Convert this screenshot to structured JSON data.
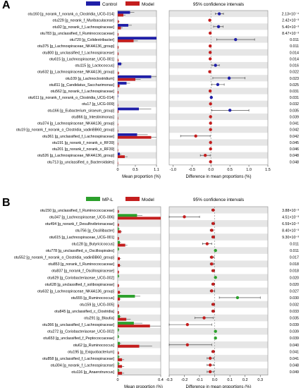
{
  "chart_data": [
    {
      "panel_label": "A",
      "type": "bar",
      "legend": [
        {
          "name": "Control",
          "color": "#1f1fa8"
        },
        {
          "name": "Model",
          "color": "#c41e1e"
        }
      ],
      "ci_header": "95% confidence intervals",
      "xlabel_left": "Mean proportion (%)",
      "xlabel_right": "Difference in mean proportions (%)",
      "left_ticks": [
        "0",
        "0.5",
        "1.1"
      ],
      "left_xlim": [
        0,
        1.1
      ],
      "right_ticks": [
        "-1.0",
        "-0.5",
        "0.0",
        "0.5",
        "1.0",
        "1.5"
      ],
      "right_xlim": [
        -1.1,
        1.5
      ],
      "series_names": [
        "Control",
        "Model"
      ],
      "rows": [
        {
          "label": "otu160 [g_norank_f_norank_o_Clostridia_UCG-014]",
          "a": 0.35,
          "ae": 0.12,
          "b": 0.16,
          "be": 0.06,
          "d": 0.22,
          "lo": 0.12,
          "hi": 0.33,
          "g": "a",
          "p": "2.13×10⁻⁴"
        },
        {
          "label": "otu229 [g_norank_f_Muribaculaceae]",
          "a": 0.0,
          "ae": 0.0,
          "b": 0.03,
          "be": 0.02,
          "d": -0.03,
          "lo": -0.05,
          "hi": -0.01,
          "g": "b",
          "p": "2.42×10⁻³"
        },
        {
          "label": "otu92 [g_norank_f_Lachnospiraceae]",
          "a": 0.3,
          "ae": 0.1,
          "b": 0.09,
          "be": 0.05,
          "d": 0.2,
          "lo": 0.07,
          "hi": 0.32,
          "g": "a",
          "p": "5.40×10⁻³"
        },
        {
          "label": "otu783 [g_unclassified_f_Ruminococcaceae]",
          "a": 0.0,
          "ae": 0.0,
          "b": 0.02,
          "be": 0.01,
          "d": -0.02,
          "lo": -0.04,
          "hi": -0.01,
          "g": "b",
          "p": "8.47×10⁻³"
        },
        {
          "label": "otu720 [g_Colidextribacter]",
          "a": 1.1,
          "ae": 0.2,
          "b": 0.45,
          "be": 0.12,
          "d": 0.65,
          "lo": 0.15,
          "hi": 1.15,
          "g": "a",
          "p": "0.011"
        },
        {
          "label": "otu375 [g_Lachnospiraceae_NK4A136_group]",
          "a": 0.0,
          "ae": 0.0,
          "b": 0.02,
          "be": 0.01,
          "d": -0.02,
          "lo": -0.04,
          "hi": 0.0,
          "g": "b",
          "p": "0.011"
        },
        {
          "label": "otu800 [g_unclassified_f_Lachnospiraceae]",
          "a": 0.0,
          "ae": 0.0,
          "b": 0.02,
          "be": 0.01,
          "d": -0.02,
          "lo": -0.04,
          "hi": 0.0,
          "g": "b",
          "p": "0.014"
        },
        {
          "label": "otu615 [g_Lachnospiraceae_UCG-001]",
          "a": 0.0,
          "ae": 0.0,
          "b": 0.02,
          "be": 0.01,
          "d": -0.02,
          "lo": -0.04,
          "hi": 0.0,
          "g": "b",
          "p": "0.014"
        },
        {
          "label": "otu115 [g_Lactococcus]",
          "a": 0.1,
          "ae": 0.03,
          "b": 0.01,
          "be": 0.01,
          "d": 0.12,
          "lo": 0.03,
          "hi": 0.22,
          "g": "a",
          "p": "0.016"
        },
        {
          "label": "otu632 [g_Lachnospiraceae_NK4A136_group]",
          "a": 0.0,
          "ae": 0.0,
          "b": 0.03,
          "be": 0.02,
          "d": -0.03,
          "lo": -0.06,
          "hi": -0.01,
          "g": "b",
          "p": "0.022"
        },
        {
          "label": "otu109 [g_Lachnoclostridium]",
          "a": 0.95,
          "ae": 0.2,
          "b": 0.5,
          "be": 0.15,
          "d": 0.48,
          "lo": 0.05,
          "hi": 0.9,
          "g": "a",
          "p": "0.023"
        },
        {
          "label": "otu811 [g_Candidatus_Saccharimonas]",
          "a": 0.25,
          "ae": 0.1,
          "b": 0.05,
          "be": 0.02,
          "d": 0.18,
          "lo": 0.02,
          "hi": 0.35,
          "g": "a",
          "p": "0.025"
        },
        {
          "label": "otu562 [g_norank_f_Lachnospiraceae]",
          "a": 0.0,
          "ae": 0.0,
          "b": 0.02,
          "be": 0.01,
          "d": -0.02,
          "lo": -0.05,
          "hi": 0.0,
          "g": "b",
          "p": "0.031"
        },
        {
          "label": "otu611 [g_norank_f_norank_o_Clostridia_UCG-014]",
          "a": 0.01,
          "ae": 0.01,
          "b": 0.0,
          "be": 0.0,
          "d": 0.01,
          "lo": 0.0,
          "hi": 0.02,
          "g": "a",
          "p": "0.031"
        },
        {
          "label": "otu17 [g_UCG-009]",
          "a": 0.0,
          "ae": 0.0,
          "b": 0.01,
          "be": 0.01,
          "d": -0.01,
          "lo": -0.03,
          "hi": 0.0,
          "g": "b",
          "p": "0.032"
        },
        {
          "label": "otu166 [g_Eubacterium_siraeum_group]",
          "a": 0.6,
          "ae": 0.35,
          "b": 0.02,
          "be": 0.01,
          "d": 0.5,
          "lo": 0.02,
          "hi": 1.0,
          "g": "a",
          "p": "0.035"
        },
        {
          "label": "otu866 [g_Intestinimonas]",
          "a": 0.0,
          "ae": 0.0,
          "b": 0.01,
          "be": 0.01,
          "d": -0.01,
          "lo": -0.02,
          "hi": 0.0,
          "g": "b",
          "p": "0.039"
        },
        {
          "label": "otu374 [g_Lachnospiraceae_NK4A136_group]",
          "a": 0.0,
          "ae": 0.0,
          "b": 0.01,
          "be": 0.01,
          "d": -0.01,
          "lo": -0.02,
          "hi": 0.0,
          "g": "b",
          "p": "0.041"
        },
        {
          "label": "otu19 [g_norank_f_norank_o_Clostridia_vadinBB60_group]",
          "a": 0.0,
          "ae": 0.0,
          "b": 0.01,
          "be": 0.01,
          "d": -0.01,
          "lo": -0.02,
          "hi": 0.0,
          "g": "b",
          "p": "0.042"
        },
        {
          "label": "otu361 [g_unclassified_f_Lachnospiraceae]",
          "a": 0.55,
          "ae": 0.3,
          "b": 0.95,
          "be": 0.25,
          "d": -0.4,
          "lo": -0.8,
          "hi": -0.02,
          "g": "b",
          "p": "0.042"
        },
        {
          "label": "otu191 [g_norank_f_norank_o_RF39]",
          "a": 0.0,
          "ae": 0.0,
          "b": 0.01,
          "be": 0.01,
          "d": -0.01,
          "lo": -0.02,
          "hi": 0.0,
          "g": "b",
          "p": "0.045"
        },
        {
          "label": "otu201 [g_norank_f_norank_o_RF39]",
          "a": 0.0,
          "ae": 0.0,
          "b": 0.01,
          "be": 0.01,
          "d": -0.01,
          "lo": -0.02,
          "hi": 0.0,
          "g": "b",
          "p": "0.046"
        },
        {
          "label": "otu526 [g_Lachnospiraceae_NK4A136_group]",
          "a": 0.06,
          "ae": 0.04,
          "b": 0.2,
          "be": 0.08,
          "d": -0.15,
          "lo": -0.28,
          "hi": -0.02,
          "g": "b",
          "p": "0.048"
        },
        {
          "label": "otu713 [g_unclassified_o_Bacteroidales]",
          "a": 0.0,
          "ae": 0.0,
          "b": 0.01,
          "be": 0.01,
          "d": -0.01,
          "lo": -0.02,
          "hi": 0.0,
          "g": "b",
          "p": "0.048"
        }
      ]
    },
    {
      "panel_label": "B",
      "type": "bar",
      "legend": [
        {
          "name": "MP-L",
          "color": "#2ca02c"
        },
        {
          "name": "Model",
          "color": "#c41e1e"
        }
      ],
      "ci_header": "95% confidence intervals",
      "xlabel_left": "Mean proportion (%)",
      "xlabel_right": "Difference in mean proportions (%)",
      "left_ticks": [
        "0",
        "0.4"
      ],
      "left_xlim": [
        0,
        0.4
      ],
      "right_ticks": [
        "-0.3",
        "-0.2",
        "-0.1",
        "0.0",
        "0.1",
        "0.2",
        "0.3"
      ],
      "right_xlim": [
        -0.3,
        0.35
      ],
      "series_names": [
        "MP-L",
        "Model"
      ],
      "rows": [
        {
          "label": "otu150 [g_unclassified_f_Ruminococcaceae]",
          "a": 0.0,
          "ae": 0.0,
          "b": 0.01,
          "be": 0.005,
          "d": -0.01,
          "lo": -0.02,
          "hi": -0.005,
          "g": "b",
          "p": "3.88×10⁻³"
        },
        {
          "label": "otu347 [g_Lachnospiraceae_UCG-006]",
          "a": 0.18,
          "ae": 0.05,
          "b": 0.4,
          "be": 0.1,
          "d": -0.2,
          "lo": -0.3,
          "hi": -0.1,
          "g": "b",
          "p": "4.51×10⁻³"
        },
        {
          "label": "otu494 [g_norank_f_Desulfovibrionaceae]",
          "a": 0.0,
          "ae": 0.0,
          "b": 0.01,
          "be": 0.005,
          "d": -0.01,
          "lo": -0.02,
          "hi": 0.0,
          "g": "b",
          "p": "6.59×10⁻³"
        },
        {
          "label": "otu756 [g_Oscillibacter]",
          "a": 0.01,
          "ae": 0.01,
          "b": 0.03,
          "be": 0.01,
          "d": -0.02,
          "lo": -0.03,
          "hi": -0.01,
          "g": "b",
          "p": "8.40×10⁻³"
        },
        {
          "label": "otu615 [g_Lachnospiraceae_UCG-001]",
          "a": 0.0,
          "ae": 0.0,
          "b": 0.01,
          "be": 0.005,
          "d": -0.01,
          "lo": -0.02,
          "hi": 0.0,
          "g": "b",
          "p": "9.30×10⁻³"
        },
        {
          "label": "otu128 [g_Butyricicoccus]",
          "a": 0.02,
          "ae": 0.01,
          "b": 0.07,
          "be": 0.02,
          "d": -0.05,
          "lo": -0.08,
          "hi": -0.02,
          "g": "b",
          "p": "0.011"
        },
        {
          "label": "otu778 [g_unclassified_o_Oscillospirales]",
          "a": 0.01,
          "ae": 0.005,
          "b": 0.0,
          "be": 0.0,
          "d": 0.005,
          "lo": 0.0,
          "hi": 0.01,
          "g": "a",
          "p": "0.011"
        },
        {
          "label": "otu552 [g_norank_f_norank_o_Clostridia_vadinBB60_group]",
          "a": 0.0,
          "ae": 0.0,
          "b": 0.02,
          "be": 0.01,
          "d": -0.02,
          "lo": -0.03,
          "hi": -0.005,
          "g": "b",
          "p": "0.017"
        },
        {
          "label": "otu853 [g_norank_f_Ruminococcaceae]",
          "a": 0.0,
          "ae": 0.0,
          "b": 0.02,
          "be": 0.01,
          "d": -0.02,
          "lo": -0.03,
          "hi": -0.005,
          "g": "b",
          "p": "0.018"
        },
        {
          "label": "otu837 [g_norank_f_Oscillospiraceae]",
          "a": 0.0,
          "ae": 0.0,
          "b": 0.01,
          "be": 0.005,
          "d": -0.01,
          "lo": -0.02,
          "hi": 0.0,
          "g": "b",
          "p": "0.018"
        },
        {
          "label": "otu629 [g_Coriobacteriaceae_UCG-002]",
          "a": 0.01,
          "ae": 0.005,
          "b": 0.0,
          "be": 0.0,
          "d": 0.005,
          "lo": 0.0,
          "hi": 0.01,
          "g": "a",
          "p": "0.020"
        },
        {
          "label": "otu628 [g_unclassified_f_solibospiraceae]",
          "a": 0.0,
          "ae": 0.0,
          "b": 0.01,
          "be": 0.005,
          "d": -0.01,
          "lo": -0.02,
          "hi": 0.0,
          "g": "b",
          "p": "0.020"
        },
        {
          "label": "otu632 [g_Lachnospiraceae_NK4A136_group]",
          "a": 0.0,
          "ae": 0.0,
          "b": 0.02,
          "be": 0.01,
          "d": -0.02,
          "lo": -0.03,
          "hi": 0.0,
          "g": "b",
          "p": "0.027"
        },
        {
          "label": "otu555 [g_Ruminococcus]",
          "a": 0.16,
          "ae": 0.05,
          "b": 0.02,
          "be": 0.01,
          "d": 0.15,
          "lo": 0.03,
          "hi": 0.3,
          "g": "a",
          "p": "0.030"
        },
        {
          "label": "otu159 [g_UCG-005]",
          "a": 0.0,
          "ae": 0.0,
          "b": 0.01,
          "be": 0.005,
          "d": -0.01,
          "lo": -0.02,
          "hi": 0.0,
          "g": "b",
          "p": "0.032"
        },
        {
          "label": "otu845 [g_unclassified_c_Clostridia]",
          "a": 0.0,
          "ae": 0.0,
          "b": 0.01,
          "be": 0.005,
          "d": -0.01,
          "lo": -0.02,
          "hi": 0.0,
          "g": "b",
          "p": "0.033"
        },
        {
          "label": "otu291 [g_Blautia]",
          "a": 0.02,
          "ae": 0.01,
          "b": 0.08,
          "be": 0.04,
          "d": -0.07,
          "lo": -0.13,
          "hi": -0.01,
          "g": "b",
          "p": "0.035"
        },
        {
          "label": "otu366 [g_unclassified_f_Lachnospiraceae]",
          "a": 0.15,
          "ae": 0.08,
          "b": 0.3,
          "be": 0.1,
          "d": -0.18,
          "lo": -0.3,
          "hi": -0.02,
          "g": "b",
          "p": "0.039"
        },
        {
          "label": "otu272 [g_Coriobacteriaceae_UCG-002]",
          "a": 0.01,
          "ae": 0.005,
          "b": 0.0,
          "be": 0.0,
          "d": 0.005,
          "lo": 0.0,
          "hi": 0.01,
          "g": "a",
          "p": "0.039"
        },
        {
          "label": "otu653 [g_unclassified_f_Peptococcaceae]",
          "a": 0.01,
          "ae": 0.005,
          "b": 0.0,
          "be": 0.0,
          "d": 0.005,
          "lo": 0.0,
          "hi": 0.01,
          "g": "a",
          "p": "0.039"
        },
        {
          "label": "otu62 [g_Ruminococcus]",
          "a": 0.02,
          "ae": 0.01,
          "b": 0.2,
          "be": 0.12,
          "d": -0.18,
          "lo": -0.3,
          "hi": -0.02,
          "g": "b",
          "p": "0.040"
        },
        {
          "label": "otu195 [g_Exiguobacterium]",
          "a": 0.0,
          "ae": 0.0,
          "b": 0.01,
          "be": 0.005,
          "d": -0.01,
          "lo": -0.02,
          "hi": 0.0,
          "g": "b",
          "p": "0.041"
        },
        {
          "label": "otu858 [g_unclassified_f_Lachnospiraceae]",
          "a": 0.01,
          "ae": 0.01,
          "b": 0.04,
          "be": 0.02,
          "d": -0.03,
          "lo": -0.05,
          "hi": -0.005,
          "g": "b",
          "p": "0.041"
        },
        {
          "label": "otu304 [g_norank_f_Lachnospiraceae]",
          "a": 0.01,
          "ae": 0.01,
          "b": 0.04,
          "be": 0.02,
          "d": -0.03,
          "lo": -0.05,
          "hi": -0.005,
          "g": "b",
          "p": "0.048"
        },
        {
          "label": "otu116 [g_Anaerotruncus]",
          "a": 0.01,
          "ae": 0.01,
          "b": 0.04,
          "be": 0.02,
          "d": -0.03,
          "lo": -0.05,
          "hi": -0.005,
          "g": "b",
          "p": "0.049"
        }
      ]
    }
  ]
}
